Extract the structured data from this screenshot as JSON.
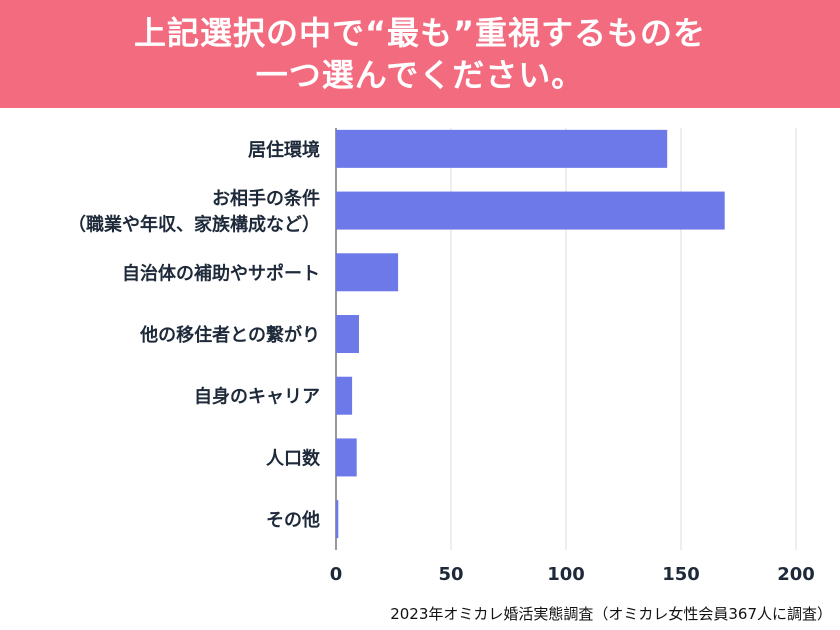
{
  "header": {
    "title_line1": "上記選択の中で“最も”重視するものを",
    "title_line2": "一つ選んでください。",
    "background": "#f36b7f"
  },
  "chart_data": {
    "type": "bar",
    "orientation": "horizontal",
    "categories": [
      [
        "居住環境"
      ],
      [
        "お相手の条件",
        "（職業や年収、家族構成など）"
      ],
      [
        "自治体の補助やサポート"
      ],
      [
        "他の移住者との繋がり"
      ],
      [
        "自身のキャリア"
      ],
      [
        "人口数"
      ],
      [
        "その他"
      ]
    ],
    "values": [
      144,
      169,
      27,
      10,
      7,
      9,
      1
    ],
    "xlim": [
      0,
      210
    ],
    "xticks": [
      "0",
      "50",
      "100",
      "150",
      "200"
    ],
    "grid": true,
    "bar_color": "#6d79e8",
    "grid_color": "#dddddd"
  },
  "footer": {
    "source": "2023年オミカレ婚活実態調査（オミカレ女性会員367人に調査）"
  }
}
